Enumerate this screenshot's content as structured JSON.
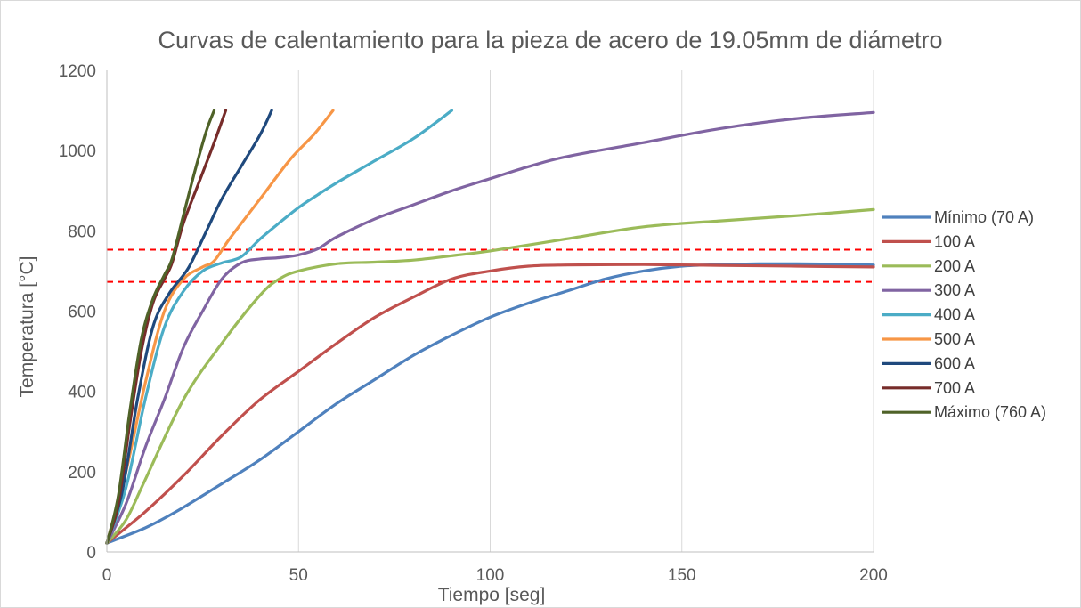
{
  "chart_data": {
    "type": "line",
    "title": "Curvas de calentamiento para la pieza de acero de 19.05mm de diámetro",
    "xlabel": "Tiempo [seg]",
    "ylabel": "Temperatura [°C]",
    "xlim": [
      0,
      200
    ],
    "ylim": [
      0,
      1200
    ],
    "xticks": [
      0,
      50,
      100,
      150,
      200
    ],
    "yticks": [
      0,
      200,
      400,
      600,
      800,
      1000,
      1200
    ],
    "grid": "vertical",
    "legend_position": "right",
    "reference_lines": [
      {
        "y": 753,
        "color": "#ff0000",
        "style": "dashed"
      },
      {
        "y": 673,
        "color": "#ff0000",
        "style": "dashed"
      }
    ],
    "series": [
      {
        "name": "Mínimo (70 A)",
        "color": "#4f81bd",
        "points": [
          [
            0,
            22
          ],
          [
            10,
            60
          ],
          [
            18,
            100
          ],
          [
            30,
            170
          ],
          [
            40,
            230
          ],
          [
            50,
            300
          ],
          [
            60,
            370
          ],
          [
            70,
            430
          ],
          [
            80,
            490
          ],
          [
            90,
            540
          ],
          [
            100,
            585
          ],
          [
            110,
            620
          ],
          [
            120,
            650
          ],
          [
            130,
            680
          ],
          [
            140,
            700
          ],
          [
            150,
            712
          ],
          [
            160,
            716
          ],
          [
            170,
            718
          ],
          [
            180,
            718
          ],
          [
            190,
            717
          ],
          [
            200,
            715
          ]
        ]
      },
      {
        "name": "100 A",
        "color": "#c0504d",
        "points": [
          [
            0,
            22
          ],
          [
            10,
            100
          ],
          [
            20,
            190
          ],
          [
            30,
            290
          ],
          [
            40,
            380
          ],
          [
            50,
            450
          ],
          [
            60,
            520
          ],
          [
            70,
            585
          ],
          [
            80,
            635
          ],
          [
            90,
            680
          ],
          [
            100,
            700
          ],
          [
            110,
            712
          ],
          [
            120,
            715
          ],
          [
            140,
            716
          ],
          [
            160,
            714
          ],
          [
            180,
            712
          ],
          [
            200,
            710
          ]
        ]
      },
      {
        "name": "200 A",
        "color": "#9bbb59",
        "points": [
          [
            0,
            22
          ],
          [
            5,
            80
          ],
          [
            10,
            180
          ],
          [
            20,
            380
          ],
          [
            30,
            520
          ],
          [
            40,
            640
          ],
          [
            45,
            680
          ],
          [
            50,
            700
          ],
          [
            60,
            718
          ],
          [
            70,
            722
          ],
          [
            80,
            727
          ],
          [
            90,
            738
          ],
          [
            100,
            750
          ],
          [
            120,
            780
          ],
          [
            140,
            810
          ],
          [
            160,
            825
          ],
          [
            180,
            838
          ],
          [
            200,
            853
          ]
        ]
      },
      {
        "name": "300 A",
        "color": "#8064a2",
        "points": [
          [
            0,
            22
          ],
          [
            5,
            120
          ],
          [
            10,
            260
          ],
          [
            15,
            380
          ],
          [
            20,
            510
          ],
          [
            25,
            600
          ],
          [
            30,
            680
          ],
          [
            35,
            720
          ],
          [
            40,
            730
          ],
          [
            45,
            733
          ],
          [
            50,
            740
          ],
          [
            55,
            755
          ],
          [
            60,
            785
          ],
          [
            70,
            830
          ],
          [
            80,
            865
          ],
          [
            90,
            900
          ],
          [
            100,
            930
          ],
          [
            110,
            960
          ],
          [
            120,
            985
          ],
          [
            140,
            1020
          ],
          [
            160,
            1055
          ],
          [
            180,
            1080
          ],
          [
            200,
            1095
          ]
        ]
      },
      {
        "name": "400 A",
        "color": "#4bacc6",
        "points": [
          [
            0,
            22
          ],
          [
            5,
            160
          ],
          [
            10,
            380
          ],
          [
            15,
            560
          ],
          [
            20,
            650
          ],
          [
            25,
            700
          ],
          [
            30,
            720
          ],
          [
            35,
            735
          ],
          [
            40,
            780
          ],
          [
            45,
            820
          ],
          [
            50,
            858
          ],
          [
            55,
            890
          ],
          [
            60,
            920
          ],
          [
            70,
            975
          ],
          [
            80,
            1030
          ],
          [
            90,
            1100
          ]
        ]
      },
      {
        "name": "500 A",
        "color": "#f79646",
        "points": [
          [
            0,
            22
          ],
          [
            5,
            200
          ],
          [
            10,
            420
          ],
          [
            15,
            600
          ],
          [
            20,
            680
          ],
          [
            25,
            710
          ],
          [
            28,
            725
          ],
          [
            32,
            780
          ],
          [
            40,
            880
          ],
          [
            48,
            980
          ],
          [
            54,
            1040
          ],
          [
            59,
            1100
          ]
        ]
      },
      {
        "name": "600 A",
        "color": "#1f497d",
        "points": [
          [
            0,
            22
          ],
          [
            4,
            150
          ],
          [
            8,
            380
          ],
          [
            12,
            560
          ],
          [
            16,
            640
          ],
          [
            20,
            690
          ],
          [
            22,
            720
          ],
          [
            26,
            800
          ],
          [
            30,
            880
          ],
          [
            35,
            960
          ],
          [
            40,
            1040
          ],
          [
            43,
            1100
          ]
        ]
      },
      {
        "name": "700 A",
        "color": "#772c2a",
        "points": [
          [
            0,
            22
          ],
          [
            3,
            120
          ],
          [
            6,
            320
          ],
          [
            9,
            500
          ],
          [
            12,
            620
          ],
          [
            15,
            680
          ],
          [
            17,
            720
          ],
          [
            20,
            820
          ],
          [
            24,
            920
          ],
          [
            28,
            1020
          ],
          [
            31,
            1100
          ]
        ]
      },
      {
        "name": "Máximo (760 A)",
        "color": "#4f6228",
        "points": [
          [
            0,
            22
          ],
          [
            3,
            140
          ],
          [
            6,
            350
          ],
          [
            9,
            530
          ],
          [
            12,
            630
          ],
          [
            15,
            690
          ],
          [
            17,
            730
          ],
          [
            20,
            840
          ],
          [
            23,
            950
          ],
          [
            26,
            1050
          ],
          [
            28,
            1100
          ]
        ]
      }
    ]
  }
}
